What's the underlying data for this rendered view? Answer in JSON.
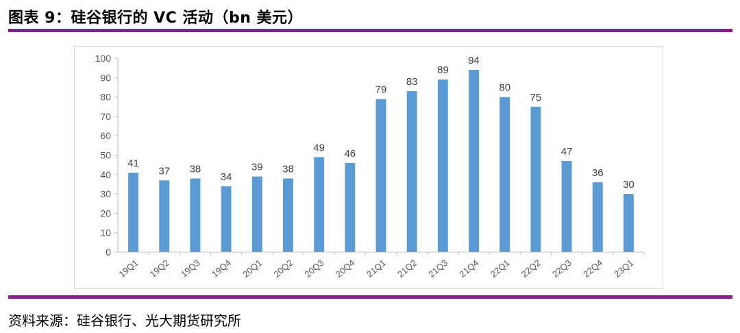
{
  "header": {
    "title": "图表 9：硅谷银行的 VC 活动（bn 美元）"
  },
  "footer": {
    "source": "资料来源：硅谷银行、光大期货研究所"
  },
  "colors": {
    "bar": "#5b9bd5",
    "rule": "#8e1a8e",
    "axis": "#bfbfbf",
    "text": "#595959"
  },
  "chart_data": {
    "type": "bar",
    "title": "",
    "xlabel": "",
    "ylabel": "",
    "ylim": [
      0,
      100
    ],
    "yticks": [
      0,
      10,
      20,
      30,
      40,
      50,
      60,
      70,
      80,
      90,
      100
    ],
    "grid": false,
    "categories": [
      "19Q1",
      "19Q2",
      "19Q3",
      "19Q4",
      "20Q1",
      "20Q2",
      "20Q3",
      "20Q4",
      "21Q1",
      "21Q2",
      "21Q3",
      "21Q4",
      "22Q1",
      "22Q2",
      "22Q3",
      "22Q4",
      "23Q1"
    ],
    "values": [
      41,
      37,
      38,
      34,
      39,
      38,
      49,
      46,
      79,
      83,
      89,
      94,
      80,
      75,
      47,
      36,
      30
    ],
    "data_labels": true
  }
}
